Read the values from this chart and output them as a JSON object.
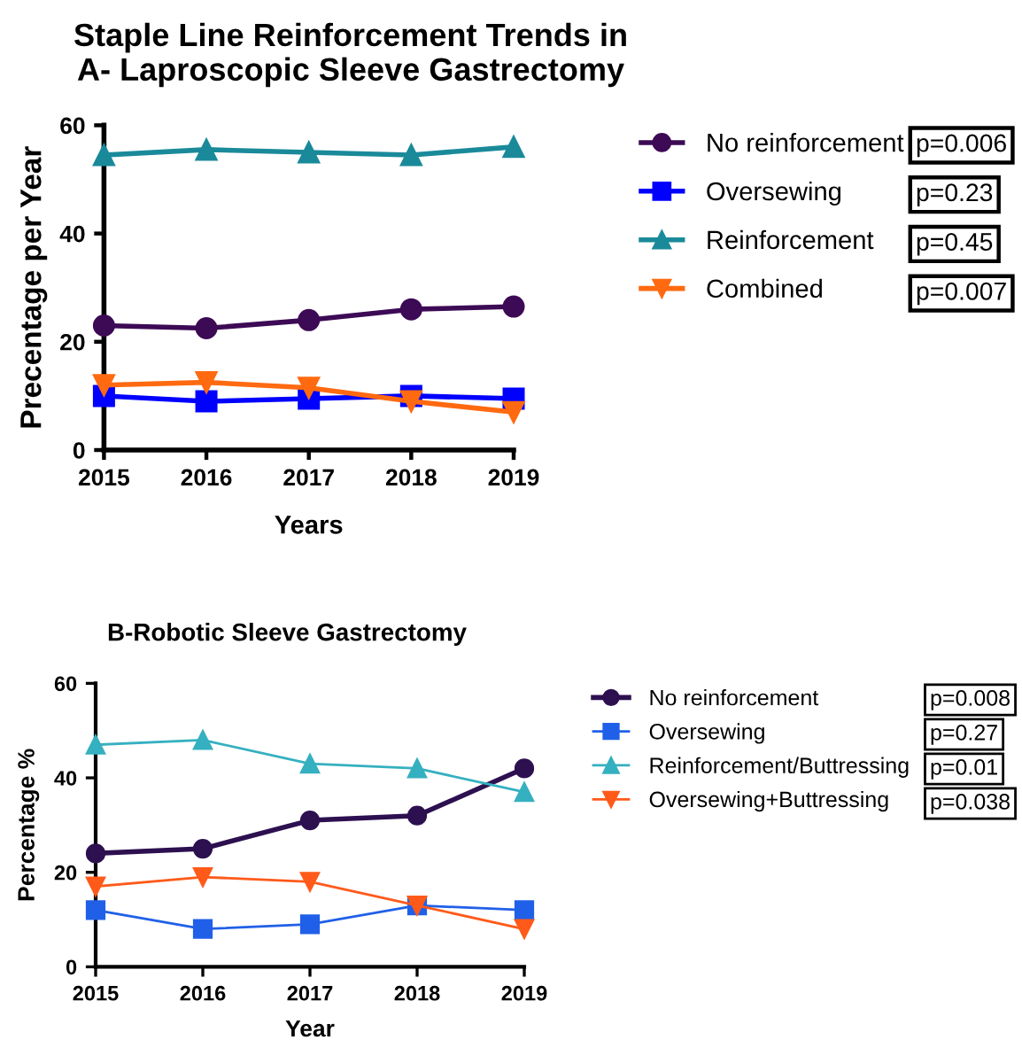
{
  "chart_data": [
    {
      "type": "line",
      "title": "Staple Line Reinforcement Trends in\nA- Laproscopic Sleeve Gastrectomy",
      "xlabel": "Years",
      "ylabel": "Precentage per Year",
      "x": [
        2015,
        2016,
        2017,
        2018,
        2019
      ],
      "series": [
        {
          "name": "No reinforcement",
          "color": "#3d0a55",
          "marker": "circle",
          "values": [
            23,
            22.5,
            24,
            26,
            26.5
          ]
        },
        {
          "name": "Oversewing",
          "color": "#0000ff",
          "marker": "square",
          "values": [
            10,
            9,
            9.5,
            10,
            9.5
          ]
        },
        {
          "name": "Reinforcement",
          "color": "#1a8a9a",
          "marker": "triangle",
          "values": [
            54.5,
            55.5,
            55,
            54.5,
            56
          ]
        },
        {
          "name": "Combined",
          "color": "#ff6a10",
          "marker": "triangle_down",
          "values": [
            12,
            12.5,
            11.5,
            9,
            7
          ]
        }
      ],
      "xlim": [
        2015,
        2019
      ],
      "xticks": [
        2015,
        2016,
        2017,
        2018,
        2019
      ],
      "ylim": [
        0,
        60
      ],
      "yticks": [
        0,
        20,
        40,
        60
      ],
      "grid": false,
      "legend": "right",
      "line_style": "solid",
      "annotations": [
        "p=0.006",
        "p=0.23",
        "p=0.45",
        "p=0.007"
      ]
    },
    {
      "type": "line",
      "title": "B-Robotic Sleeve Gastrectomy",
      "xlabel": "Year",
      "ylabel": "Percentage %",
      "x": [
        2015,
        2016,
        2017,
        2018,
        2019
      ],
      "series": [
        {
          "name": "No reinforcement",
          "color": "#2d1050",
          "marker": "circle",
          "values": [
            24,
            25,
            31,
            32,
            42
          ]
        },
        {
          "name": "Oversewing",
          "color": "#2060e8",
          "marker": "square",
          "values": [
            12,
            8,
            9,
            13,
            12
          ]
        },
        {
          "name": "Reinforcement/Buttressing",
          "color": "#35b0c0",
          "marker": "triangle",
          "values": [
            47,
            48,
            43,
            42,
            37
          ]
        },
        {
          "name": "Oversewing+Buttressing",
          "color": "#ff5a1a",
          "marker": "triangle_down",
          "values": [
            17,
            19,
            18,
            13,
            8
          ]
        }
      ],
      "xlim": [
        2015,
        2019
      ],
      "xticks": [
        2015,
        2016,
        2017,
        2018,
        2019
      ],
      "ylim": [
        0,
        60
      ],
      "yticks": [
        0,
        20,
        40,
        60
      ],
      "grid": false,
      "legend": "right",
      "line_style": "solid",
      "annotations": [
        "p=0.008",
        "p=0.27",
        "p=0.01",
        "p=0.038"
      ]
    }
  ]
}
